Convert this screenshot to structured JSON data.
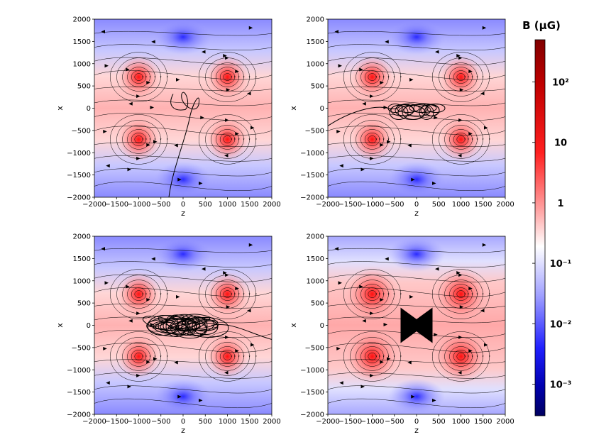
{
  "chart_data": {
    "type": "heatmap",
    "description": "Four panels of magnetic field strength maps with streamlines and particle trajectories",
    "panels": [
      {
        "id": "top-left",
        "xlabel": "z",
        "ylabel": "x",
        "xlim": [
          -2000,
          2000
        ],
        "ylim": [
          -2000,
          2000
        ],
        "trajectory": "wandering-vertical"
      },
      {
        "id": "top-right",
        "xlabel": "z",
        "ylabel": "x",
        "xlim": [
          -2000,
          2000
        ],
        "ylim": [
          -2000,
          2000
        ],
        "trajectory": "horizontal-tangle"
      },
      {
        "id": "bottom-left",
        "xlabel": "z",
        "ylabel": "x",
        "xlim": [
          -2000,
          2000
        ],
        "ylim": [
          -2000,
          2000
        ],
        "trajectory": "dense-tangle"
      },
      {
        "id": "bottom-right",
        "xlabel": "z",
        "ylabel": "x",
        "xlim": [
          -2000,
          2000
        ],
        "ylim": [
          -2000,
          2000
        ],
        "trajectory": "bowtie"
      }
    ],
    "x_ticks": [
      "−2000",
      "−1500",
      "−1000",
      "−500",
      "0",
      "500",
      "1000",
      "1500",
      "2000"
    ],
    "y_ticks": [
      "2000",
      "1500",
      "1000",
      "500",
      "0",
      "−500",
      "−1000",
      "−1500",
      "−2000"
    ],
    "x_tick_values": [
      -2000,
      -1500,
      -1000,
      -500,
      0,
      500,
      1000,
      1500,
      2000
    ],
    "y_tick_values": [
      2000,
      1500,
      1000,
      500,
      0,
      -500,
      -1000,
      -1500,
      -2000
    ],
    "red_centers": [
      [
        -1000,
        700
      ],
      [
        1000,
        700
      ],
      [
        -1000,
        -700
      ],
      [
        1000,
        -700
      ]
    ],
    "blue_centers": [
      [
        0,
        1600
      ],
      [
        0,
        -1600
      ]
    ],
    "colorbar": {
      "title": "B (μG)",
      "scale": "log",
      "range": [
        0.0003,
        500
      ],
      "ticks": [
        {
          "label": "10²",
          "value": 100
        },
        {
          "label": "10",
          "value": 10
        },
        {
          "label": "1",
          "value": 1
        },
        {
          "label": "10⁻¹",
          "value": 0.1
        },
        {
          "label": "10⁻²",
          "value": 0.01
        },
        {
          "label": "10⁻³",
          "value": 0.001
        }
      ]
    },
    "colors": {
      "red": "#ff0000",
      "white": "#ffffff",
      "blue": "#0000ff",
      "dark_red": "#800000",
      "dark_blue": "#000060"
    }
  }
}
